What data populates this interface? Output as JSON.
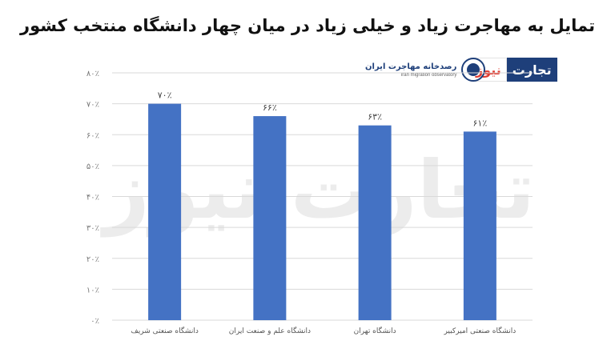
{
  "title": "تمایل به مهاجرت زیاد و خیلی زیاد در میان چهار دانشگاه منتخب کشور",
  "watermark_text": "تجارت نیوز",
  "brand": {
    "part_a": "تجارت",
    "part_b": "نیوز",
    "color_a": "#1e3f7a",
    "color_b": "#e03c31"
  },
  "observatory": {
    "name_fa": "رصدخانه مهاجرت ایران",
    "name_en": "Iran migration observatory",
    "icon": "observatory-seal-icon"
  },
  "chart_data": {
    "type": "bar",
    "categories": [
      "دانشگاه صنعتی شریف",
      "دانشگاه علم و صنعت ایران",
      "دانشگاه تهران",
      "دانشگاه صنعتی امیرکبیر"
    ],
    "values": [
      70,
      66,
      63,
      61
    ],
    "value_labels": [
      "۷۰٪",
      "۶۶٪",
      "۶۳٪",
      "۶۱٪"
    ],
    "ylim": [
      0,
      80
    ],
    "yticks": [
      0,
      10,
      20,
      30,
      40,
      50,
      60,
      70,
      80
    ],
    "ytick_labels": [
      "۰٪",
      "۱۰٪",
      "۲۰٪",
      "۳۰٪",
      "۴۰٪",
      "۵۰٪",
      "۶۰٪",
      "۷۰٪",
      "۸۰٪"
    ],
    "bar_color": "#4472c4",
    "grid": true,
    "xlabel": "",
    "ylabel": ""
  }
}
